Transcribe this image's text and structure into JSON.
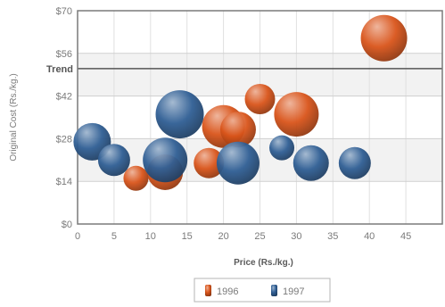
{
  "chart_data": {
    "type": "scatter",
    "title": "",
    "xlabel": "Price (Rs./kg.)",
    "ylabel": "Original Cost (Rs./kg.)",
    "xlim": [
      0,
      50
    ],
    "ylim": [
      0,
      70
    ],
    "x_ticks": [
      0,
      5,
      10,
      15,
      20,
      25,
      30,
      35,
      40,
      45
    ],
    "x_tick_labels": [
      "0",
      "5",
      "10",
      "15",
      "20",
      "25",
      "30",
      "35",
      "40",
      "45"
    ],
    "y_ticks": [
      0,
      14,
      28,
      42,
      56,
      70
    ],
    "y_tick_labels": [
      "$0",
      "$14",
      "$28",
      "$42",
      "$56",
      "$70"
    ],
    "grid": true,
    "legend_position": "bottom",
    "trend_line": {
      "label": "Trend",
      "value": 51
    },
    "series": [
      {
        "name": "1996",
        "color": "#d9541a",
        "points": [
          {
            "x": 42,
            "y": 61,
            "size": 26
          },
          {
            "x": 25,
            "y": 41,
            "size": 17
          },
          {
            "x": 30,
            "y": 36,
            "size": 25
          },
          {
            "x": 20,
            "y": 32,
            "size": 24
          },
          {
            "x": 22,
            "y": 31,
            "size": 20
          },
          {
            "x": 18,
            "y": 20,
            "size": 17
          },
          {
            "x": 12,
            "y": 17,
            "size": 20
          },
          {
            "x": 8,
            "y": 15,
            "size": 14
          }
        ]
      },
      {
        "name": "1997",
        "color": "#2f5e94",
        "points": [
          {
            "x": 2,
            "y": 27,
            "size": 21
          },
          {
            "x": 5,
            "y": 21,
            "size": 18
          },
          {
            "x": 14,
            "y": 36,
            "size": 27
          },
          {
            "x": 12,
            "y": 21,
            "size": 25
          },
          {
            "x": 22,
            "y": 20,
            "size": 24
          },
          {
            "x": 28,
            "y": 25,
            "size": 14
          },
          {
            "x": 32,
            "y": 20,
            "size": 20
          },
          {
            "x": 38,
            "y": 20,
            "size": 18
          }
        ]
      }
    ]
  }
}
